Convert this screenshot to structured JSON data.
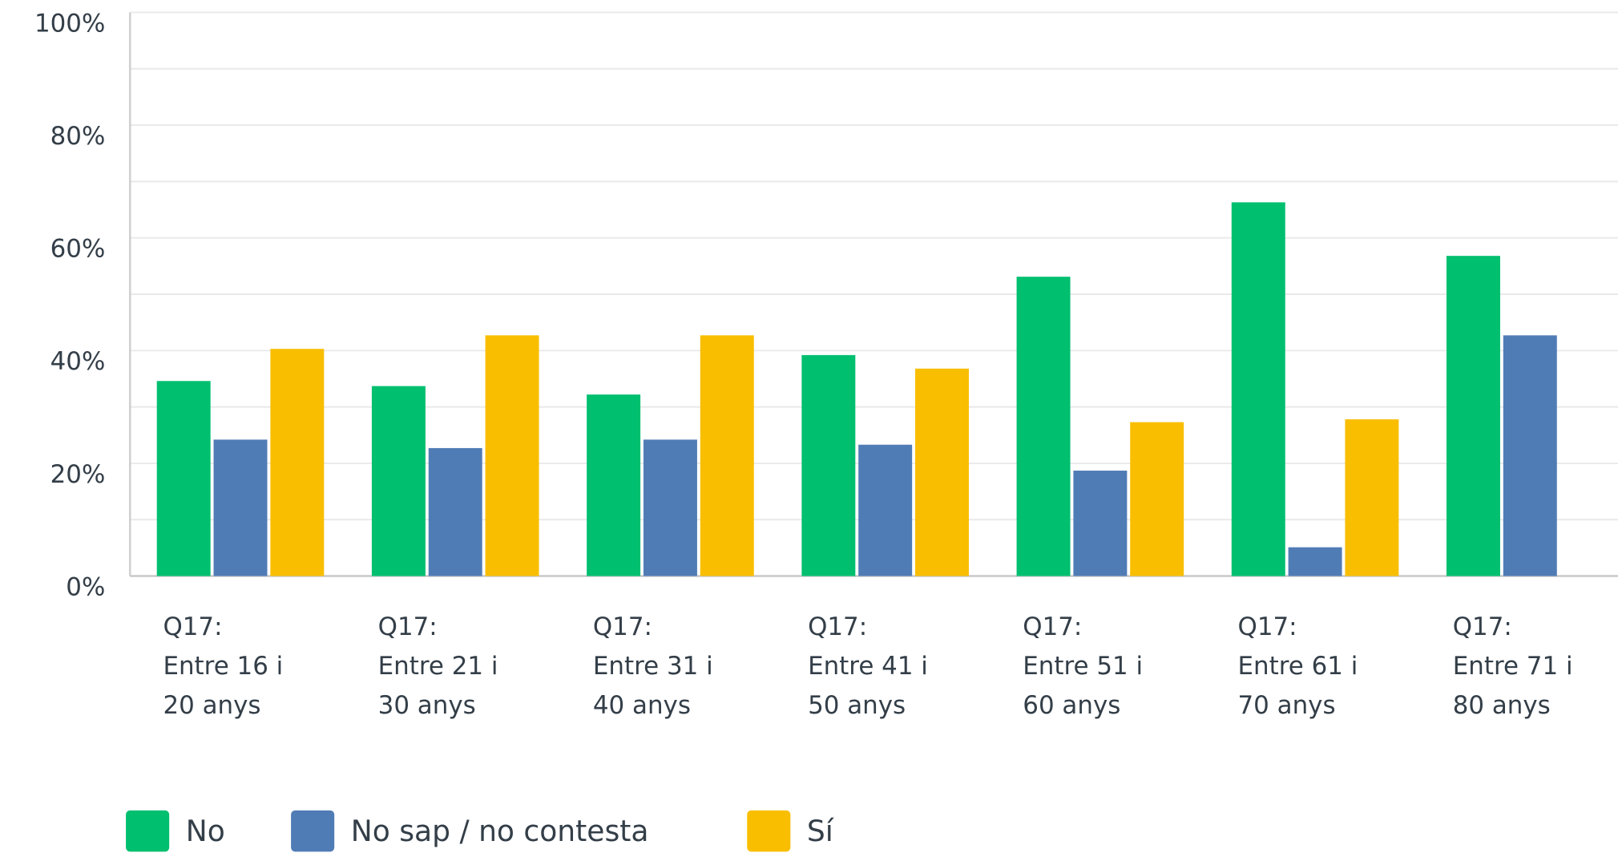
{
  "chart_data": {
    "type": "bar",
    "categories": [
      "Q17:\nEntre 16 i\n20 anys",
      "Q17:\nEntre 21 i\n30 anys",
      "Q17:\nEntre 31 i\n40 anys",
      "Q17:\nEntre 41 i\n50 anys",
      "Q17:\nEntre 51 i\n60 anys",
      "Q17:\nEntre 61 i\n70 anys",
      "Q17:\nEntre 71 i\n80 anys"
    ],
    "series": [
      {
        "name": "No",
        "color": "#00bf6f",
        "values": [
          34.6,
          33.7,
          32.2,
          39.2,
          53.1,
          66.3,
          56.8
        ]
      },
      {
        "name": "No sap / no contesta",
        "color": "#507cb6",
        "values": [
          24.2,
          22.7,
          24.2,
          23.3,
          18.7,
          5.1,
          42.7
        ]
      },
      {
        "name": "Sí",
        "color": "#f9be00",
        "values": [
          40.3,
          42.7,
          42.7,
          36.8,
          27.3,
          27.8,
          null
        ]
      }
    ],
    "ylim": [
      0,
      100
    ],
    "yticks": [
      {
        "value": 0,
        "label": "0%"
      },
      {
        "value": 20,
        "label": "20%"
      },
      {
        "value": 40,
        "label": "40%"
      },
      {
        "value": 60,
        "label": "60%"
      },
      {
        "value": 80,
        "label": "80%"
      },
      {
        "value": 100,
        "label": "100%"
      }
    ],
    "minor_grid": [
      10,
      30,
      50,
      70,
      90
    ],
    "grid": true
  }
}
